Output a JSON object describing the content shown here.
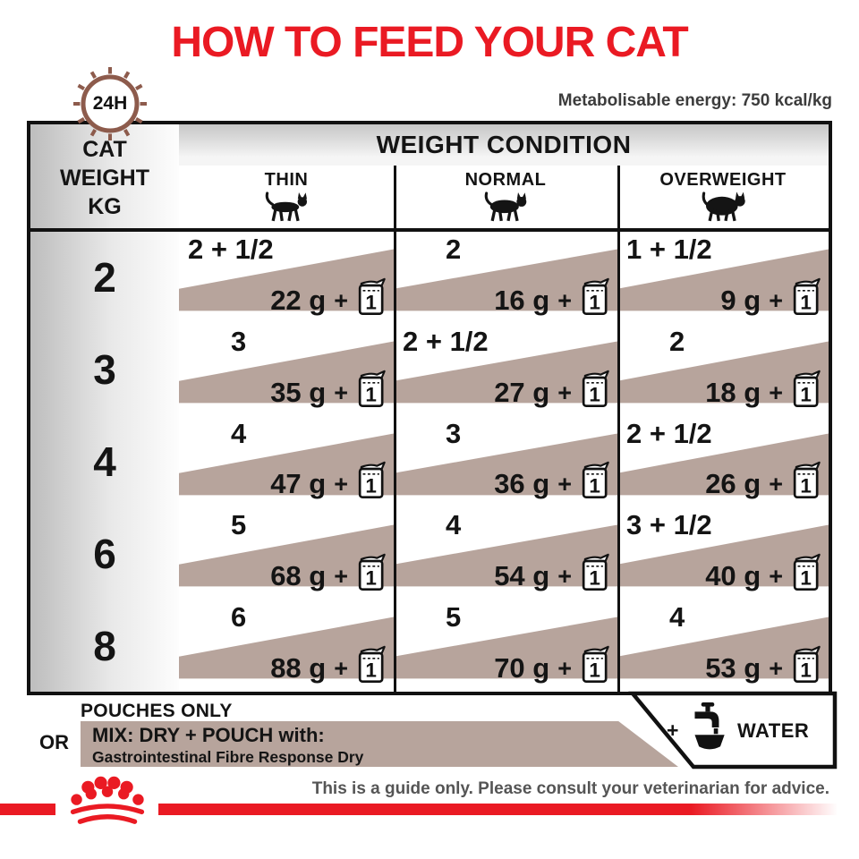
{
  "title": "HOW TO FEED YOUR CAT",
  "energy_note": "Metabolisable energy: 750 kcal/kg",
  "dial_label": "24H",
  "table": {
    "row_header_lines": [
      "CAT",
      "WEIGHT",
      "KG"
    ],
    "header": "WEIGHT CONDITION",
    "conditions": [
      "THIN",
      "NORMAL",
      "OVERWEIGHT"
    ],
    "plus_sign": "+",
    "pouch_icon_label": "1",
    "rows": [
      {
        "weight": "2",
        "cells": [
          {
            "pouches": "2 + 1/2",
            "grams": "22 g"
          },
          {
            "pouches": "2",
            "grams": "16 g"
          },
          {
            "pouches": "1 + 1/2",
            "grams": "9 g"
          }
        ]
      },
      {
        "weight": "3",
        "cells": [
          {
            "pouches": "3",
            "grams": "35 g"
          },
          {
            "pouches": "2 + 1/2",
            "grams": "27 g"
          },
          {
            "pouches": "2",
            "grams": "18 g"
          }
        ]
      },
      {
        "weight": "4",
        "cells": [
          {
            "pouches": "4",
            "grams": "47 g"
          },
          {
            "pouches": "3",
            "grams": "36 g"
          },
          {
            "pouches": "2 + 1/2",
            "grams": "26 g"
          }
        ]
      },
      {
        "weight": "6",
        "cells": [
          {
            "pouches": "5",
            "grams": "68 g"
          },
          {
            "pouches": "4",
            "grams": "54 g"
          },
          {
            "pouches": "3 + 1/2",
            "grams": "40 g"
          }
        ]
      },
      {
        "weight": "8",
        "cells": [
          {
            "pouches": "6",
            "grams": "88 g"
          },
          {
            "pouches": "5",
            "grams": "70 g"
          },
          {
            "pouches": "4",
            "grams": "53 g"
          }
        ]
      }
    ]
  },
  "legend": {
    "pouches_only": "POUCHES ONLY",
    "or": "OR",
    "mix_title": "MIX: DRY + POUCH with:",
    "mix_subtitle": "Gastrointestinal Fibre Response Dry",
    "water_plus": "+",
    "water": "WATER"
  },
  "footer_note": "This is a guide only. Please consult your veterinarian for advice.",
  "colors": {
    "red": "#ea1a23",
    "taupe": "#b7a49c",
    "dial_brown": "#8d5b4c",
    "border_black": "#111111"
  }
}
